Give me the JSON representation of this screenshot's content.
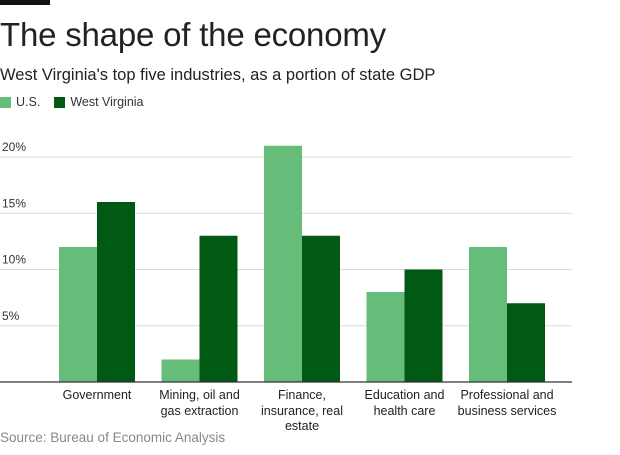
{
  "header": {
    "title": "The shape of the economy",
    "subtitle": "West Virginia's top five industries, as a portion of state GDP"
  },
  "footer": {
    "source": "Source: Bureau of Economic Analysis"
  },
  "colors": {
    "us": "#66bd79",
    "wv": "#005a14",
    "grid": "#d9d9d9",
    "axis": "#333333"
  },
  "chart_data": {
    "type": "bar",
    "categories": [
      "Government",
      "Mining, oil and\ngas extraction",
      "Finance,\ninsurance, real\nestate",
      "Education and\nhealth care",
      "Professional and\nbusiness services"
    ],
    "series": [
      {
        "name": "U.S.",
        "values": [
          12,
          2,
          21,
          8,
          12
        ]
      },
      {
        "name": "West Virginia",
        "values": [
          16,
          13,
          13,
          10,
          7
        ]
      }
    ],
    "yticks": [
      5,
      10,
      15,
      20
    ],
    "ytick_labels": [
      "5%",
      "10%",
      "15%",
      "20%"
    ],
    "ylim": [
      0,
      21
    ],
    "grid": true,
    "legend": "top-left"
  }
}
